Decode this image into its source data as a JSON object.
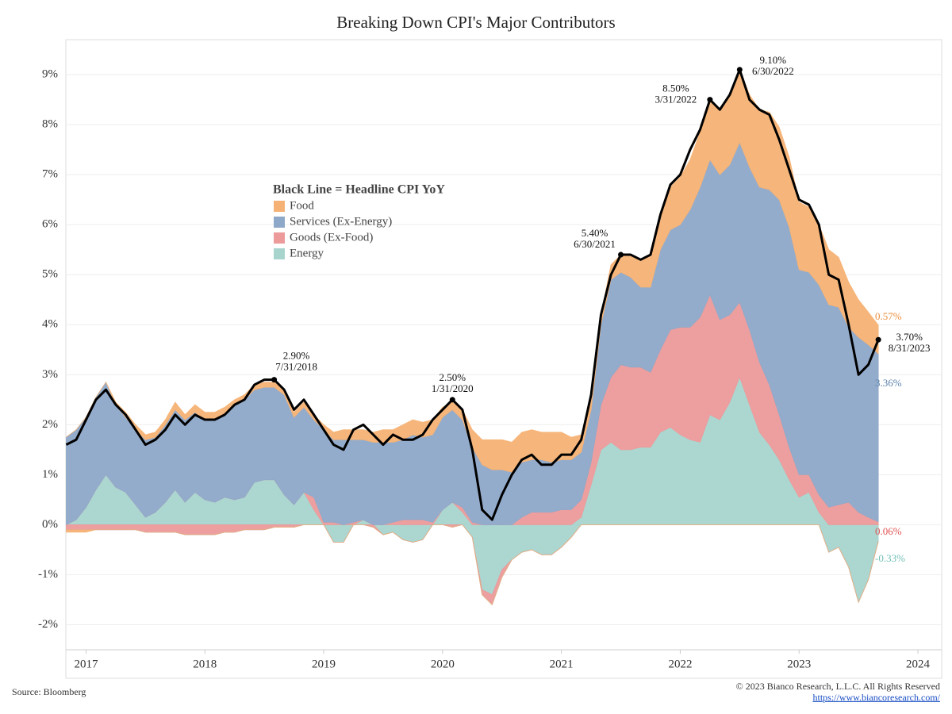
{
  "chart_data": {
    "type": "stacked_area_line",
    "title": "Breaking Down CPI's Major Contributors",
    "legend_title": "Black Line = Headline CPI YoY",
    "x": [
      2016.833,
      2016.917,
      2017,
      2017.083,
      2017.167,
      2017.25,
      2017.333,
      2017.417,
      2017.5,
      2017.583,
      2017.667,
      2017.75,
      2017.833,
      2017.917,
      2018,
      2018.083,
      2018.167,
      2018.25,
      2018.333,
      2018.417,
      2018.5,
      2018.583,
      2018.667,
      2018.75,
      2018.833,
      2018.917,
      2019,
      2019.083,
      2019.167,
      2019.25,
      2019.333,
      2019.417,
      2019.5,
      2019.583,
      2019.667,
      2019.75,
      2019.833,
      2019.917,
      2020,
      2020.083,
      2020.167,
      2020.25,
      2020.333,
      2020.417,
      2020.5,
      2020.583,
      2020.667,
      2020.75,
      2020.833,
      2020.917,
      2021,
      2021.083,
      2021.167,
      2021.25,
      2021.333,
      2021.417,
      2021.5,
      2021.583,
      2021.667,
      2021.75,
      2021.833,
      2021.917,
      2022,
      2022.083,
      2022.167,
      2022.25,
      2022.333,
      2022.417,
      2022.5,
      2022.583,
      2022.667,
      2022.75,
      2022.833,
      2022.917,
      2023,
      2023.083,
      2023.167,
      2023.25,
      2023.333,
      2023.417,
      2023.5,
      2023.583,
      2023.667
    ],
    "series": [
      {
        "name": "Food",
        "color": "#f5b274",
        "label_color": "#ec8f3e",
        "end_label": "0.57%",
        "values": [
          -0.05,
          -0.05,
          -0.05,
          0,
          0,
          0.05,
          0.1,
          0.1,
          0.1,
          0.1,
          0.1,
          0.15,
          0.1,
          0.15,
          0.15,
          0.15,
          0.15,
          0.1,
          0.1,
          0.1,
          0.1,
          0.1,
          0.1,
          0.1,
          0.1,
          0.1,
          0.1,
          0.15,
          0.2,
          0.2,
          0.2,
          0.2,
          0.25,
          0.25,
          0.3,
          0.3,
          0.3,
          0.3,
          0.2,
          0.15,
          0.2,
          0.35,
          0.5,
          0.6,
          0.6,
          0.6,
          0.6,
          0.6,
          0.55,
          0.6,
          0.55,
          0.45,
          0.35,
          0.3,
          0.2,
          0.3,
          0.35,
          0.45,
          0.55,
          0.65,
          0.7,
          0.85,
          0.95,
          1.0,
          1.1,
          1.2,
          1.3,
          1.4,
          1.45,
          1.45,
          1.55,
          1.55,
          1.45,
          1.4,
          1.35,
          1.3,
          1.2,
          1.1,
          1.0,
          0.9,
          0.75,
          0.65,
          0.57
        ]
      },
      {
        "name": "Services (Ex-Energy)",
        "color": "#8ea8c9",
        "label_color": "#5d82ad",
        "end_label": "3.36%",
        "values": [
          1.75,
          1.8,
          1.8,
          1.85,
          1.85,
          1.65,
          1.5,
          1.5,
          1.55,
          1.5,
          1.55,
          1.6,
          1.65,
          1.6,
          1.6,
          1.65,
          1.65,
          1.9,
          1.95,
          1.85,
          1.85,
          1.85,
          2.0,
          1.75,
          1.7,
          1.55,
          1.85,
          1.65,
          1.7,
          1.65,
          1.6,
          1.65,
          1.65,
          1.6,
          1.6,
          1.7,
          1.65,
          1.75,
          1.85,
          1.85,
          1.75,
          1.5,
          1.2,
          1.1,
          1.1,
          1.05,
          1.1,
          1.05,
          1.05,
          1.0,
          1.0,
          1.0,
          0.95,
          1.05,
          1.6,
          1.95,
          1.85,
          1.8,
          1.6,
          1.7,
          2.0,
          2.0,
          2.05,
          2.35,
          2.6,
          2.7,
          2.9,
          3.0,
          3.2,
          3.25,
          3.5,
          3.9,
          4.3,
          4.4,
          4.1,
          4.05,
          4.2,
          4.05,
          3.95,
          3.5,
          3.5,
          3.45,
          3.36
        ]
      },
      {
        "name": "Goods (Ex-Food)",
        "color": "#ec9a9a",
        "label_color": "#e05252",
        "end_label": "0.06%",
        "values": [
          -0.1,
          -0.1,
          -0.1,
          -0.1,
          -0.1,
          -0.1,
          -0.1,
          -0.1,
          -0.15,
          -0.15,
          -0.15,
          -0.15,
          -0.2,
          -0.2,
          -0.2,
          -0.2,
          -0.15,
          -0.15,
          -0.1,
          -0.1,
          -0.1,
          -0.05,
          -0.05,
          -0.05,
          0,
          0.25,
          0.05,
          0.05,
          0,
          0.05,
          0,
          -0.05,
          0,
          0.05,
          0.1,
          0.1,
          0.1,
          0.05,
          0,
          -0.05,
          0.1,
          0.05,
          -0.1,
          -0.2,
          -0.15,
          0,
          0.15,
          0.25,
          0.25,
          0.25,
          0.3,
          0.3,
          0.35,
          0.45,
          0.9,
          1.3,
          1.7,
          1.65,
          1.6,
          1.5,
          1.65,
          1.95,
          2.15,
          2.25,
          2.5,
          2.4,
          2.0,
          1.75,
          1.5,
          1.5,
          1.4,
          1.2,
          0.9,
          0.65,
          0.45,
          0.35,
          0.35,
          0.35,
          0.4,
          0.45,
          0.25,
          0.15,
          0.06
        ]
      },
      {
        "name": "Energy",
        "color": "#a8d4ce",
        "label_color": "#72bfb4",
        "end_label": "-0.33%",
        "values": [
          0,
          0.1,
          0.35,
          0.7,
          1.0,
          0.75,
          0.65,
          0.4,
          0.15,
          0.25,
          0.45,
          0.7,
          0.45,
          0.65,
          0.5,
          0.45,
          0.55,
          0.5,
          0.55,
          0.85,
          0.9,
          0.9,
          0.6,
          0.4,
          0.65,
          0.3,
          0,
          -0.35,
          -0.35,
          0,
          0.1,
          0,
          -0.2,
          -0.15,
          -0.3,
          -0.35,
          -0.3,
          0,
          0.3,
          0.45,
          0.25,
          -0.25,
          -1.3,
          -1.4,
          -0.9,
          -0.7,
          -0.55,
          -0.5,
          -0.6,
          -0.6,
          -0.45,
          -0.25,
          0.15,
          0.8,
          1.5,
          1.65,
          1.5,
          1.5,
          1.55,
          1.55,
          1.85,
          1.95,
          1.8,
          1.7,
          1.65,
          2.2,
          2.1,
          2.45,
          2.95,
          2.4,
          1.85,
          1.6,
          1.3,
          0.9,
          0.55,
          0.65,
          0.25,
          -0.55,
          -0.45,
          -0.85,
          -1.55,
          -1.1,
          -0.33
        ]
      }
    ],
    "headline": {
      "color": "#000000",
      "values": [
        1.6,
        1.7,
        2.1,
        2.5,
        2.7,
        2.4,
        2.2,
        1.9,
        1.6,
        1.7,
        1.9,
        2.2,
        2.0,
        2.2,
        2.1,
        2.1,
        2.2,
        2.4,
        2.5,
        2.8,
        2.9,
        2.9,
        2.7,
        2.3,
        2.5,
        2.2,
        1.9,
        1.6,
        1.5,
        1.9,
        2.0,
        1.8,
        1.6,
        1.8,
        1.7,
        1.7,
        1.8,
        2.1,
        2.3,
        2.5,
        2.3,
        1.5,
        0.3,
        0.1,
        0.6,
        1.0,
        1.3,
        1.4,
        1.2,
        1.2,
        1.4,
        1.4,
        1.7,
        2.6,
        4.2,
        5.0,
        5.4,
        5.4,
        5.3,
        5.4,
        6.2,
        6.8,
        7.0,
        7.5,
        7.9,
        8.5,
        8.3,
        8.6,
        9.1,
        8.5,
        8.3,
        8.2,
        7.7,
        7.1,
        6.5,
        6.4,
        6.0,
        5.0,
        4.9,
        4.0,
        3.0,
        3.2,
        3.7
      ]
    },
    "annotations": [
      {
        "x": 2018.583,
        "label": "2.90%",
        "date": "7/31/2018"
      },
      {
        "x": 2020.083,
        "label": "2.50%",
        "date": "1/31/2020"
      },
      {
        "x": 2021.5,
        "label": "5.40%",
        "date": "6/30/2021"
      },
      {
        "x": 2022.25,
        "label": "8.50%",
        "date": "3/31/2022"
      },
      {
        "x": 2022.5,
        "label": "9.10%",
        "date": "6/30/2022"
      },
      {
        "x": 2023.667,
        "label": "3.70%",
        "date": "8/31/2023"
      }
    ],
    "xlim": [
      2016.83,
      2024.2
    ],
    "xticks": [
      2017,
      2018,
      2019,
      2020,
      2021,
      2022,
      2023,
      2024
    ],
    "ylim": [
      -2.5,
      9.7
    ],
    "yticks": [
      {
        "value": -2,
        "label": "-2%"
      },
      {
        "value": -1,
        "label": "-1%"
      },
      {
        "value": 0,
        "label": "0%"
      },
      {
        "value": 1,
        "label": "1%"
      },
      {
        "value": 2,
        "label": "2%"
      },
      {
        "value": 3,
        "label": "3%"
      },
      {
        "value": 4,
        "label": "4%"
      },
      {
        "value": 5,
        "label": "5%"
      },
      {
        "value": 6,
        "label": "6%"
      },
      {
        "value": 7,
        "label": "7%"
      },
      {
        "value": 8,
        "label": "8%"
      },
      {
        "value": 9,
        "label": "9%"
      }
    ],
    "grid": true,
    "legend_position": "upper-left",
    "source": "Source: Bloomberg",
    "copyright": "© 2023 Bianco Research, L.L.C. All Rights Reserved",
    "url": "https://www.biancoresearch.com/"
  }
}
